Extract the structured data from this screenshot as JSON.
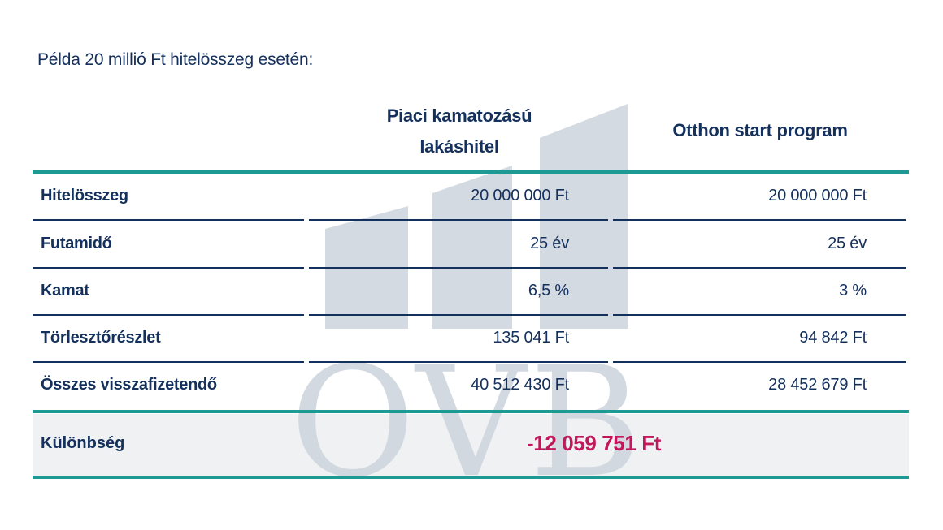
{
  "watermark": {
    "text": "OVB"
  },
  "intro": "Példa 20 millió Ft hitelösszeg esetén:",
  "columns": {
    "a_line1": "Piaci kamatozású",
    "a_line2": "lakáshitel",
    "b": "Otthon start program"
  },
  "rows": [
    {
      "label": "Hitelösszeg",
      "a": "20 000 000 Ft",
      "b": "20 000 000 Ft"
    },
    {
      "label": "Futamidő",
      "a": "25 év",
      "b": "25 év"
    },
    {
      "label": "Kamat",
      "a": "6,5 %",
      "b": "3 %"
    },
    {
      "label": "Törlesztőrészlet",
      "a": "135 041 Ft",
      "b": "94 842 Ft"
    },
    {
      "label": "Összes visszafizetendő",
      "a": "40 512 430 Ft",
      "b": "28 452 679 Ft"
    }
  ],
  "difference": {
    "label": "Különbség",
    "value": "-12 059 751 Ft"
  },
  "colors": {
    "navy": "#14305c",
    "teal": "#1d9a93",
    "magenta": "#c2185b",
    "watermark": "#ccd3dc"
  }
}
